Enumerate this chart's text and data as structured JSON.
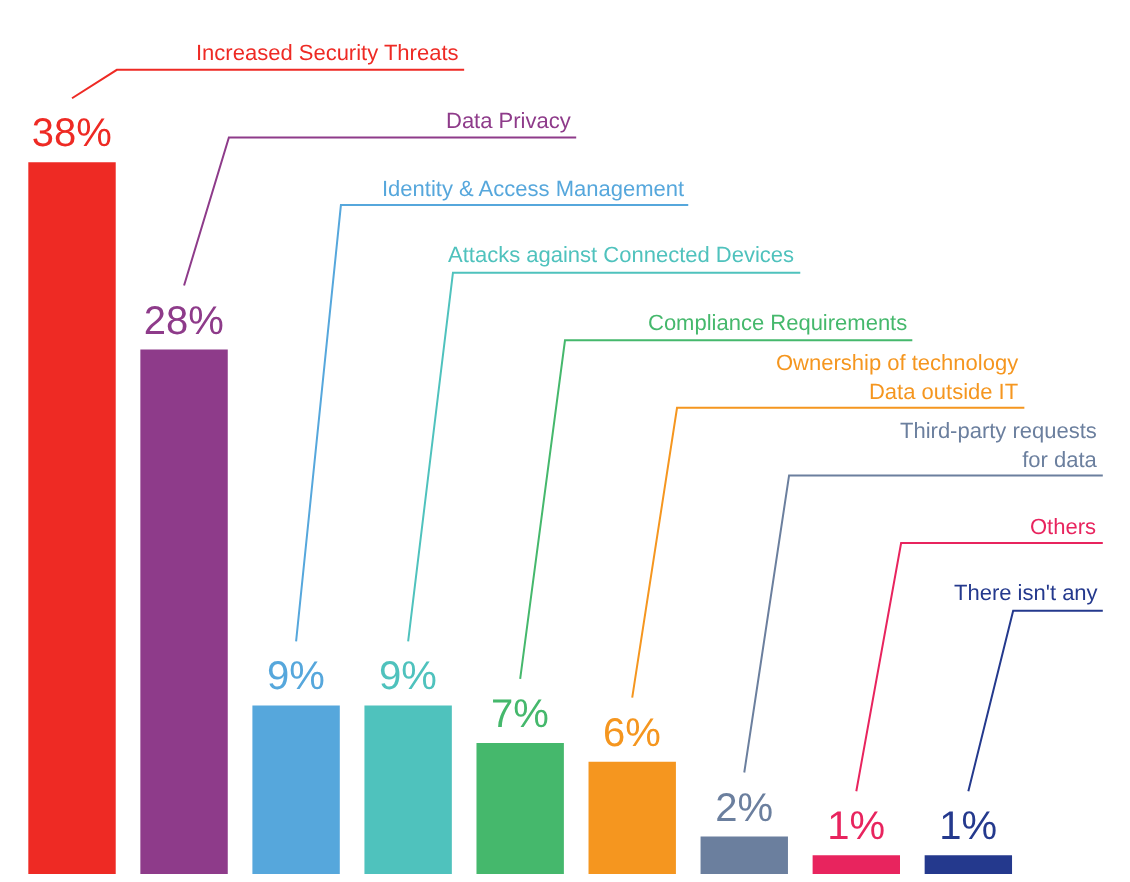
{
  "chart_data": {
    "type": "bar",
    "categories": [
      null,
      null,
      null,
      null,
      null,
      null,
      null,
      null,
      null
    ],
    "annotations": [
      "Increased Security Threats",
      "Data Privacy",
      "Identity & Access Management",
      "Attacks against Connected Devices",
      "Compliance Requirements",
      "Ownership of technology\nData outside IT",
      "Third-party requests\nfor data",
      "Others",
      "There isn't any"
    ],
    "values": [
      38,
      28,
      9,
      9,
      7,
      6,
      2,
      1,
      1
    ],
    "value_labels": [
      "38%",
      "28%",
      "9%",
      "9%",
      "7%",
      "6%",
      "2%",
      "1%",
      "1%"
    ],
    "colors": [
      "#ee2a24",
      "#8e3b8a",
      "#56a7dc",
      "#4fc2bd",
      "#45b86c",
      "#f5961f",
      "#6b7f9e",
      "#e8245e",
      "#24398d"
    ]
  }
}
